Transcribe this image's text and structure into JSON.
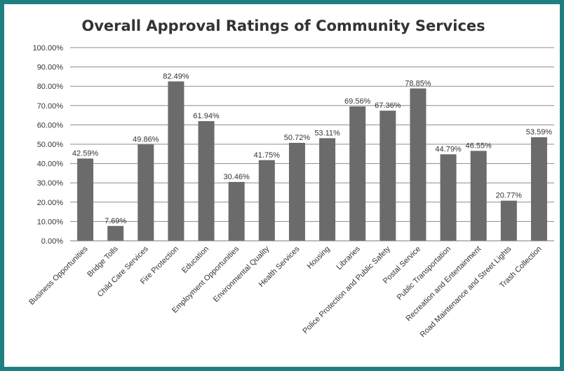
{
  "chart_data": {
    "type": "bar",
    "title": "Overall Approval Ratings of Community Services",
    "xlabel": "",
    "ylabel": "",
    "ylim": [
      0,
      100
    ],
    "ytick_step": 10,
    "ytick_labels": [
      "0.00%",
      "10.00%",
      "20.00%",
      "30.00%",
      "40.00%",
      "50.00%",
      "60.00%",
      "70.00%",
      "80.00%",
      "90.00%",
      "100.00%"
    ],
    "grid": true,
    "legend": "none",
    "bar_color": "#6b6b6b",
    "categories": [
      "Business Opportunities",
      "Bridge Tolls",
      "Child Care Services",
      "Fire Protection",
      "Education",
      "Employment Opportunities",
      "Environmental Quality",
      "Health Services",
      "Housing",
      "Libraries",
      "Police Protection and Public Safety",
      "Postal Service",
      "Public Transportation",
      "Recreation and Entertainment",
      "Road Maintenance and Street Lights",
      "Trash Collection"
    ],
    "values": [
      42.59,
      7.69,
      49.86,
      82.49,
      61.94,
      30.46,
      41.75,
      50.72,
      53.11,
      69.56,
      67.36,
      78.85,
      44.79,
      46.55,
      20.77,
      53.59
    ],
    "data_labels": [
      "42.59%",
      "7.69%",
      "49.86%",
      "82.49%",
      "61.94%",
      "30.46%",
      "41.75%",
      "50.72%",
      "53.11%",
      "69.56%",
      "67.36%",
      "78.85%",
      "44.79%",
      "46.55%",
      "20.77%",
      "53.59%"
    ]
  }
}
